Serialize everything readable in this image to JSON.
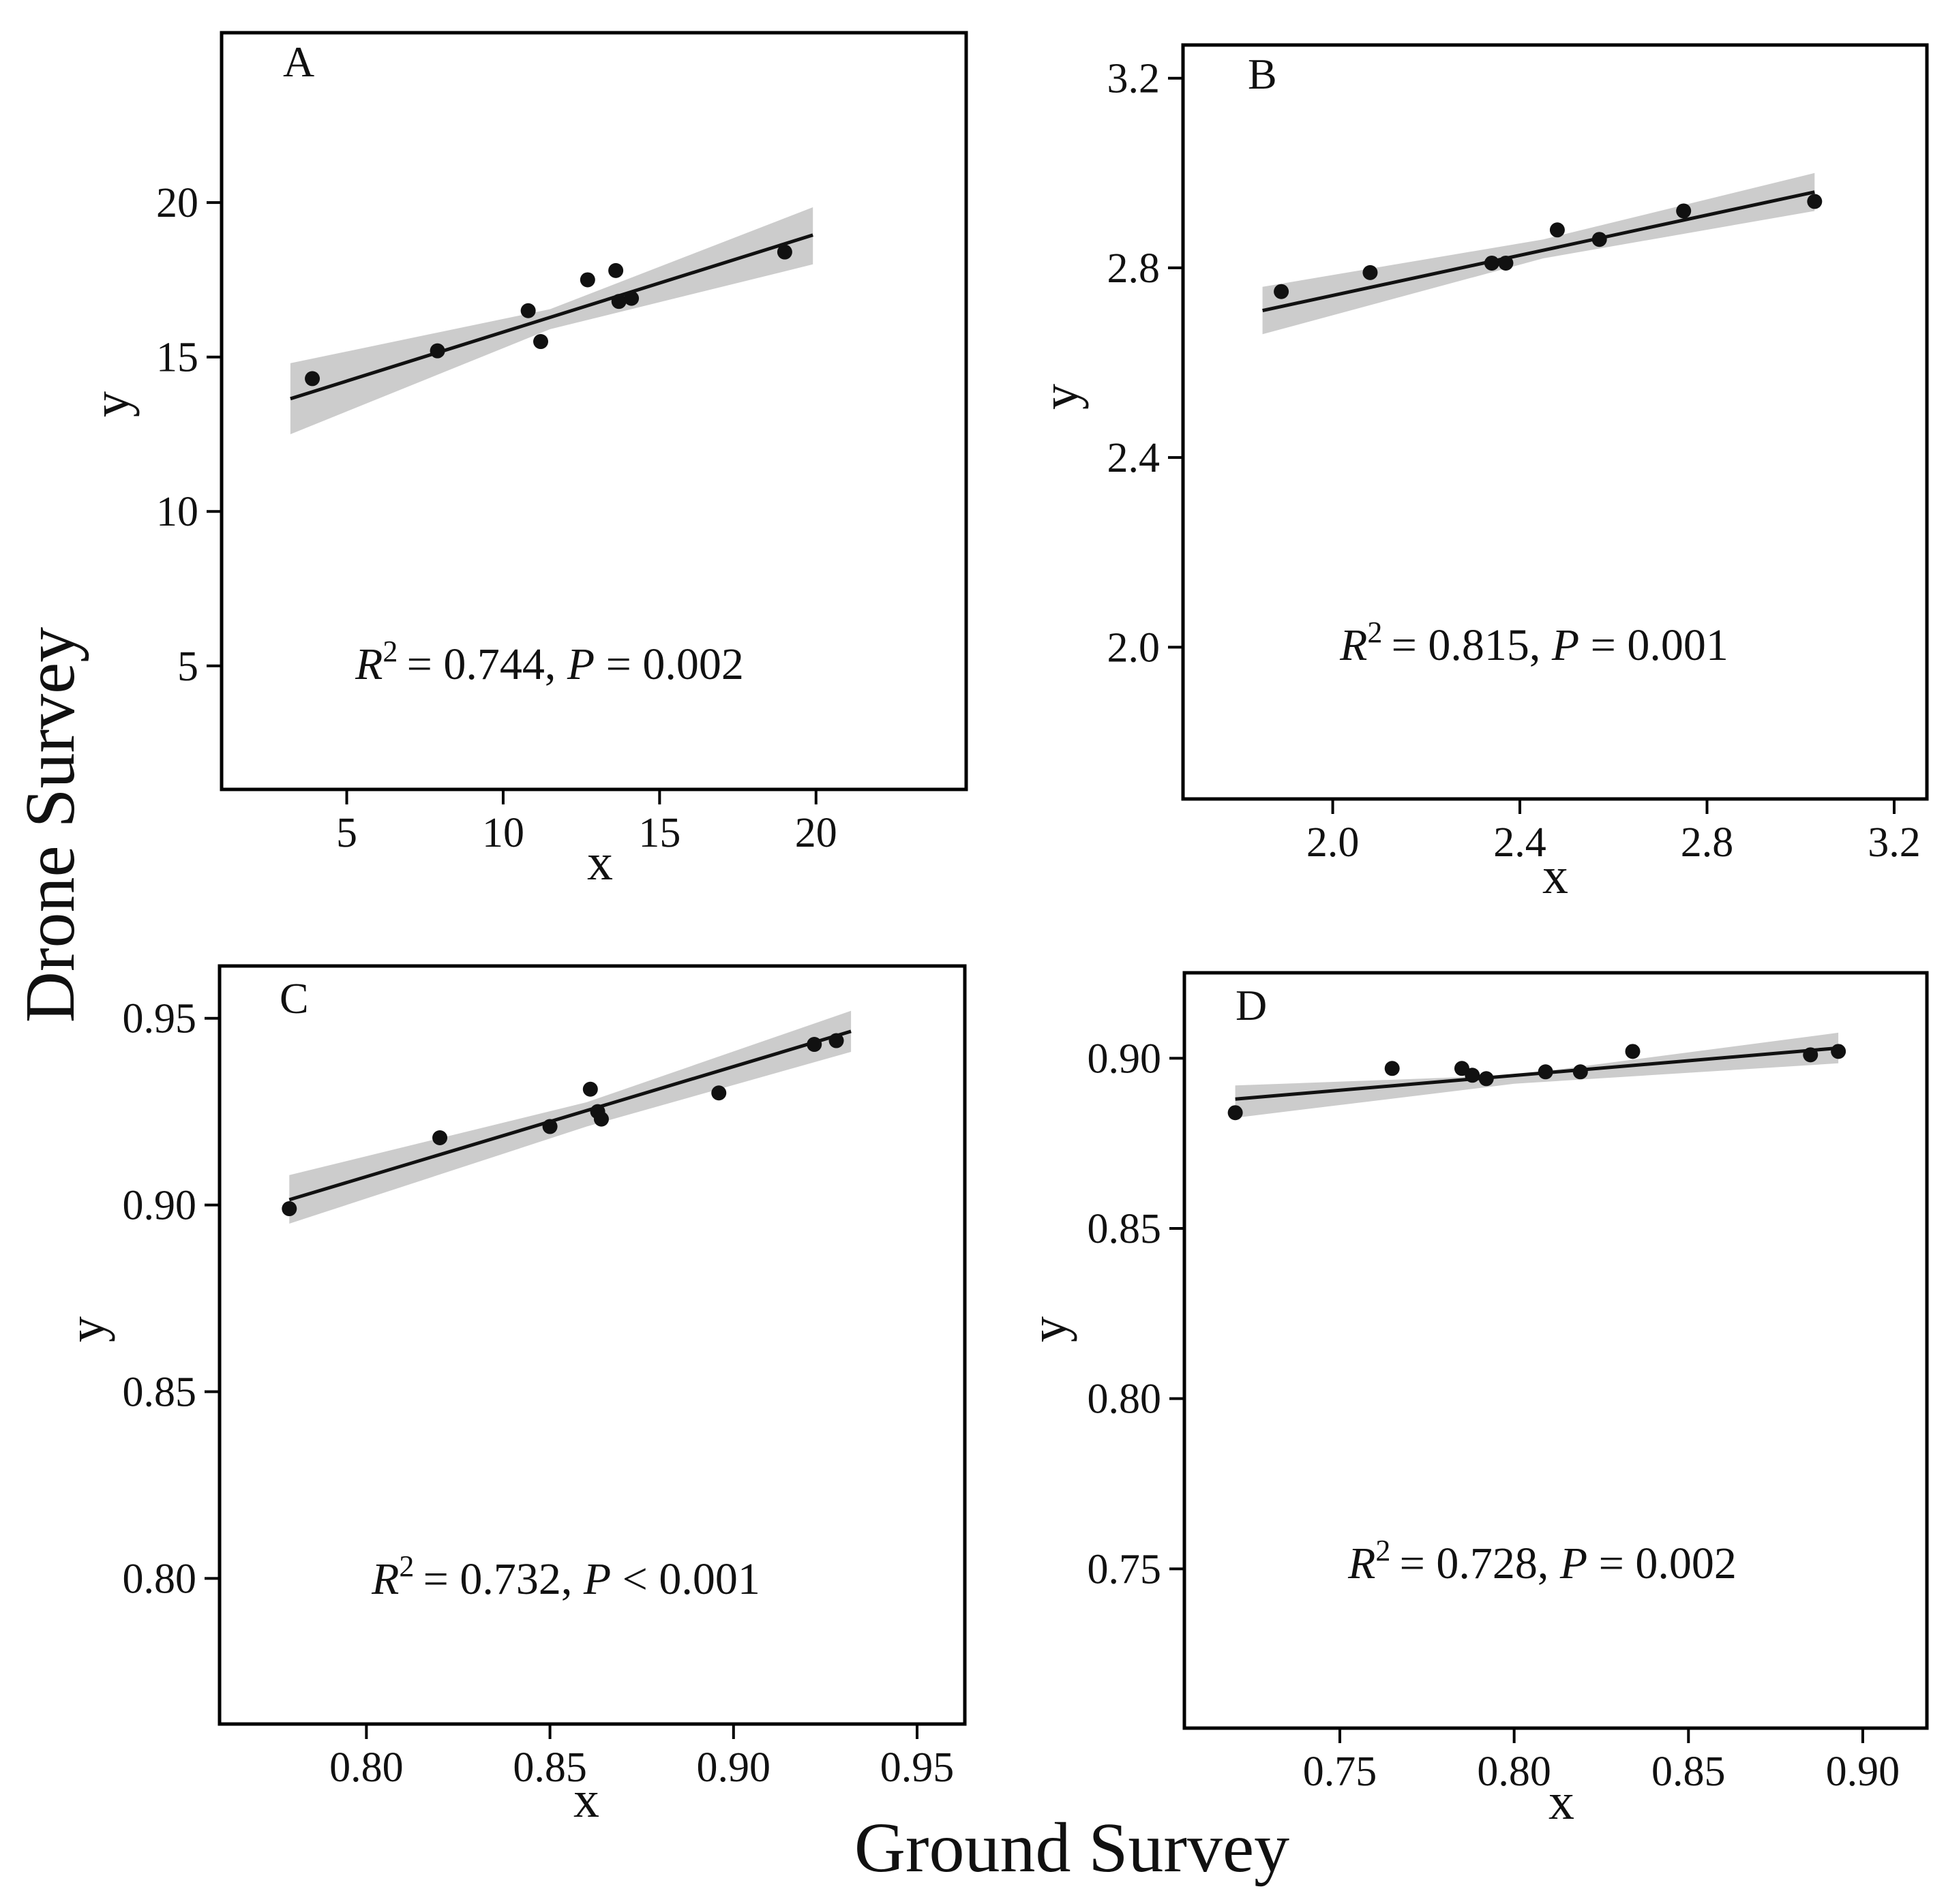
{
  "figure": {
    "xlabel": "Ground Survey",
    "ylabel": "Drone Survey"
  },
  "colors": {
    "line": "#111111",
    "band": "#cccccc",
    "point": "#111111",
    "frame": "#000000"
  },
  "chart_data": [
    {
      "type": "scatter",
      "panel": "A",
      "xlabel": "x",
      "ylabel": "y",
      "xlim": [
        1.0,
        24.8
      ],
      "ylim": [
        1.0,
        25.5
      ],
      "xticks": [
        5,
        10,
        15,
        20
      ],
      "xtick_labels": [
        "5",
        "10",
        "15",
        "20"
      ],
      "yticks": [
        5,
        10,
        15,
        20
      ],
      "ytick_labels": [
        "5",
        "10",
        "15",
        "20"
      ],
      "points": {
        "x": [
          3.9,
          7.9,
          10.8,
          11.2,
          12.7,
          13.6,
          13.7,
          14.1,
          19.0
        ],
        "y": [
          14.3,
          15.2,
          16.5,
          15.5,
          17.5,
          17.8,
          16.8,
          16.9,
          18.4
        ]
      },
      "fit": {
        "x": [
          3.2,
          19.9
        ],
        "y": [
          13.65,
          18.95
        ]
      },
      "band": {
        "x": [
          3.2,
          11.5,
          19.9
        ],
        "upper": [
          14.8,
          16.55,
          19.85
        ],
        "lower": [
          12.5,
          15.9,
          18.0
        ]
      },
      "annotation": {
        "r2": "0.744",
        "p_op": "=",
        "p": "0.002"
      }
    },
    {
      "type": "scatter",
      "panel": "B",
      "xlabel": "x",
      "ylabel": "y",
      "xlim": [
        1.68,
        3.27
      ],
      "ylim": [
        1.68,
        3.27
      ],
      "xticks": [
        2.0,
        2.4,
        2.8,
        3.2
      ],
      "xtick_labels": [
        "2.0",
        "2.4",
        "2.8",
        "3.2"
      ],
      "yticks": [
        2.0,
        2.4,
        2.8,
        3.2
      ],
      "ytick_labels": [
        "2.0",
        "2.4",
        "2.8",
        "3.2"
      ],
      "points": {
        "x": [
          1.89,
          2.08,
          2.34,
          2.37,
          2.48,
          2.57,
          2.75,
          3.03
        ],
        "y": [
          2.75,
          2.79,
          2.81,
          2.81,
          2.88,
          2.86,
          2.92,
          2.94
        ]
      },
      "fit": {
        "x": [
          1.85,
          3.03
        ],
        "y": [
          2.71,
          2.96
        ]
      },
      "band": {
        "x": [
          1.85,
          2.45,
          3.03
        ],
        "upper": [
          2.76,
          2.86,
          3.0
        ],
        "lower": [
          2.66,
          2.82,
          2.92
        ]
      },
      "annotation": {
        "r2": "0.815",
        "p_op": "=",
        "p": "0.001"
      }
    },
    {
      "type": "scatter",
      "panel": "C",
      "xlabel": "x",
      "ylabel": "y",
      "xlim": [
        0.76,
        0.963
      ],
      "ylim": [
        0.761,
        0.964
      ],
      "xticks": [
        0.8,
        0.85,
        0.9,
        0.95
      ],
      "xtick_labels": [
        "0.80",
        "0.85",
        "0.90",
        "0.95"
      ],
      "yticks": [
        0.8,
        0.85,
        0.9,
        0.95
      ],
      "ytick_labels": [
        "0.80",
        "0.85",
        "0.90",
        "0.95"
      ],
      "points": {
        "x": [
          0.779,
          0.82,
          0.85,
          0.861,
          0.863,
          0.864,
          0.896,
          0.922,
          0.928
        ],
        "y": [
          0.899,
          0.918,
          0.921,
          0.931,
          0.925,
          0.923,
          0.93,
          0.943,
          0.944
        ]
      },
      "fit": {
        "x": [
          0.779,
          0.932
        ],
        "y": [
          0.9014,
          0.9465
        ]
      },
      "band": {
        "x": [
          0.779,
          0.86,
          0.932
        ],
        "upper": [
          0.908,
          0.9275,
          0.952
        ],
        "lower": [
          0.895,
          0.921,
          0.941
        ]
      },
      "annotation": {
        "r2": "0.732",
        "p_op": "<",
        "p": "0.001"
      }
    },
    {
      "type": "scatter",
      "panel": "D",
      "xlabel": "x",
      "ylabel": "y",
      "xlim": [
        0.7054,
        0.9184
      ],
      "ylim": [
        0.7032,
        0.9251
      ],
      "xticks": [
        0.75,
        0.8,
        0.85,
        0.9
      ],
      "xtick_labels": [
        "0.75",
        "0.80",
        "0.85",
        "0.90"
      ],
      "yticks": [
        0.75,
        0.8,
        0.85,
        0.9
      ],
      "ytick_labels": [
        "0.75",
        "0.80",
        "0.85",
        "0.90"
      ],
      "points": {
        "x": [
          0.72,
          0.765,
          0.785,
          0.788,
          0.792,
          0.809,
          0.819,
          0.834,
          0.885,
          0.893
        ],
        "y": [
          0.884,
          0.897,
          0.897,
          0.895,
          0.894,
          0.896,
          0.896,
          0.902,
          0.901,
          0.902
        ]
      },
      "fit": {
        "x": [
          0.72,
          0.893
        ],
        "y": [
          0.888,
          0.903
        ]
      },
      "band": {
        "x": [
          0.72,
          0.8,
          0.893
        ],
        "upper": [
          0.892,
          0.895,
          0.9075
        ],
        "lower": [
          0.8825,
          0.8925,
          0.8985
        ]
      },
      "annotation": {
        "r2": "0.728",
        "p_op": "=",
        "p": "0.002"
      }
    }
  ]
}
